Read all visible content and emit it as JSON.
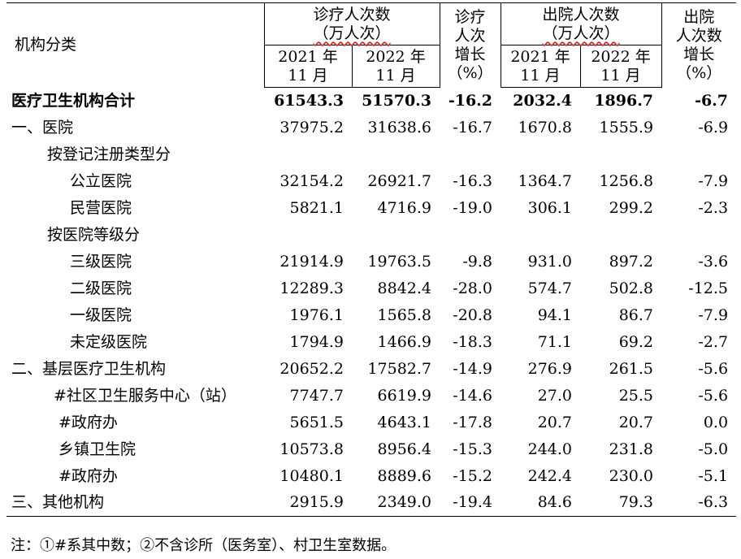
{
  "header": {
    "category": "机构分类",
    "visits_group_line1": "诊疗人次数",
    "visits_group_line2": "（万人次）",
    "visits_growth": "诊疗\n人次\n增长\n（%）",
    "discharge_group_line1": "出院人次数",
    "discharge_group_line2": "（万人次）",
    "discharge_growth": "出院\n人次数\n增长\n（%）",
    "y2021": "2021 年\n11 月",
    "y2022": "2022 年\n11 月"
  },
  "rows": [
    {
      "label": "医疗卫生机构合计",
      "v2021": "61543.3",
      "v2022": "51570.3",
      "vg": "-16.2",
      "d2021": "2032.4",
      "d2022": "1896.7",
      "dg": "-6.7"
    },
    {
      "label": "一、医院",
      "v2021": "37975.2",
      "v2022": "31638.6",
      "vg": "-16.7",
      "d2021": "1670.8",
      "d2022": "1555.9",
      "dg": "-6.9"
    },
    {
      "label": "按登记注册类型分",
      "v2021": "",
      "v2022": "",
      "vg": "",
      "d2021": "",
      "d2022": "",
      "dg": ""
    },
    {
      "label": "公立医院",
      "v2021": "32154.2",
      "v2022": "26921.7",
      "vg": "-16.3",
      "d2021": "1364.7",
      "d2022": "1256.8",
      "dg": "-7.9"
    },
    {
      "label": "民营医院",
      "v2021": "5821.1",
      "v2022": "4716.9",
      "vg": "-19.0",
      "d2021": "306.1",
      "d2022": "299.2",
      "dg": "-2.3"
    },
    {
      "label": "按医院等级分",
      "v2021": "",
      "v2022": "",
      "vg": "",
      "d2021": "",
      "d2022": "",
      "dg": ""
    },
    {
      "label": "三级医院",
      "v2021": "21914.9",
      "v2022": "19763.5",
      "vg": "-9.8",
      "d2021": "931.0",
      "d2022": "897.2",
      "dg": "-3.6"
    },
    {
      "label": "二级医院",
      "v2021": "12289.3",
      "v2022": "8842.4",
      "vg": "-28.0",
      "d2021": "574.7",
      "d2022": "502.8",
      "dg": "-12.5"
    },
    {
      "label": "一级医院",
      "v2021": "1976.1",
      "v2022": "1565.8",
      "vg": "-20.8",
      "d2021": "94.1",
      "d2022": "86.7",
      "dg": "-7.9"
    },
    {
      "label": "未定级医院",
      "v2021": "1794.9",
      "v2022": "1466.9",
      "vg": "-18.3",
      "d2021": "71.1",
      "d2022": "69.2",
      "dg": "-2.7"
    },
    {
      "label": "二、基层医疗卫生机构",
      "v2021": "20652.2",
      "v2022": "17582.7",
      "vg": "-14.9",
      "d2021": "276.9",
      "d2022": "261.5",
      "dg": "-5.6"
    },
    {
      "label": "#社区卫生服务中心（站）",
      "v2021": "7747.7",
      "v2022": "6619.9",
      "vg": "-14.6",
      "d2021": "27.0",
      "d2022": "25.5",
      "dg": "-5.6"
    },
    {
      "label": "#政府办",
      "v2021": "5651.5",
      "v2022": "4643.1",
      "vg": "-17.8",
      "d2021": "20.7",
      "d2022": "20.7",
      "dg": "0.0"
    },
    {
      "label": "乡镇卫生院",
      "v2021": "10573.8",
      "v2022": "8956.4",
      "vg": "-15.3",
      "d2021": "244.0",
      "d2022": "231.8",
      "dg": "-5.0"
    },
    {
      "label": "#政府办",
      "v2021": "10480.1",
      "v2022": "8889.6",
      "vg": "-15.2",
      "d2021": "242.4",
      "d2022": "230.0",
      "dg": "-5.1"
    },
    {
      "label": "三、其他机构",
      "v2021": "2915.9",
      "v2022": "2349.0",
      "vg": "-19.4",
      "d2021": "84.6",
      "d2022": "79.3",
      "dg": "-6.3"
    }
  ],
  "note": "注：①#系其中数；②不含诊所（医务室）、村卫生室数据。"
}
